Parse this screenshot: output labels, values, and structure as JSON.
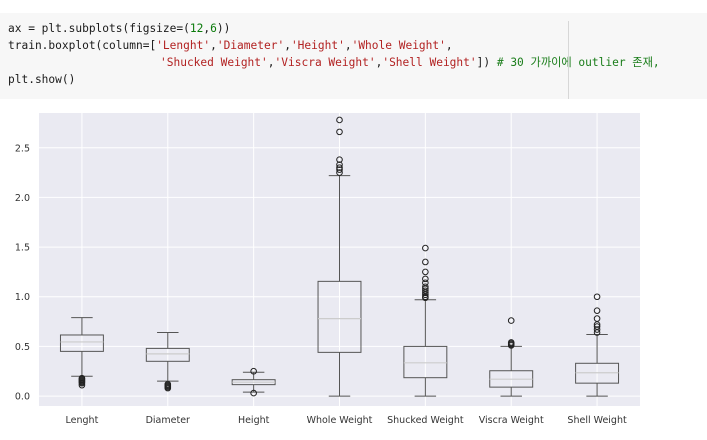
{
  "code": {
    "line1": {
      "p1": "ax = plt.subplots(figsize=(",
      "n1": "12",
      "p2": ",",
      "n2": "6",
      "p3": "))"
    },
    "line2": {
      "p1": "train.boxplot(column=[",
      "s1": "'Lenght'",
      "c1": ",",
      "s2": "'Diameter'",
      "c2": ",",
      "s3": "'Height'",
      "c3": ",",
      "s4": "'Whole Weight'",
      "c4": ","
    },
    "line3": {
      "s5": "'Shucked Weight'",
      "c5": ",",
      "s6": "'Viscra Weight'",
      "c6": ",",
      "s7": "'Shell Weight'",
      "p2": "]) ",
      "comment": "# 30 가까이에 outlier 존재,"
    },
    "line4": "plt.show()"
  },
  "chart_data": {
    "type": "boxplot",
    "title": "",
    "xlabel": "",
    "ylabel": "",
    "ylim": [
      -0.1,
      2.85
    ],
    "yticks": [
      0.0,
      0.5,
      1.0,
      1.5,
      2.0,
      2.5
    ],
    "ytick_labels": [
      "0.0",
      "0.5",
      "1.0",
      "1.5",
      "2.0",
      "2.5"
    ],
    "grid": true,
    "colors": {
      "background": "#eaeaf2",
      "grid": "#ffffff",
      "box": "#555555",
      "median": "#cccccc"
    },
    "categories": [
      "Lenght",
      "Diameter",
      "Height",
      "Whole Weight",
      "Shucked Weight",
      "Viscra Weight",
      "Shell Weight"
    ],
    "boxes": [
      {
        "name": "Lenght",
        "whislo": 0.2,
        "q1": 0.45,
        "med": 0.545,
        "q3": 0.615,
        "whishi": 0.79,
        "fliers": [
          0.11,
          0.13,
          0.14,
          0.15,
          0.16,
          0.17,
          0.18
        ]
      },
      {
        "name": "Diameter",
        "whislo": 0.15,
        "q1": 0.35,
        "med": 0.425,
        "q3": 0.48,
        "whishi": 0.64,
        "fliers": [
          0.08,
          0.09,
          0.1,
          0.11,
          0.12
        ]
      },
      {
        "name": "Height",
        "whislo": 0.04,
        "q1": 0.115,
        "med": 0.14,
        "q3": 0.165,
        "whishi": 0.24,
        "fliers": [
          0.03,
          0.25
        ]
      },
      {
        "name": "Whole Weight",
        "whislo": 0.0,
        "q1": 0.44,
        "med": 0.78,
        "q3": 1.155,
        "whishi": 2.22,
        "fliers": [
          2.25,
          2.28,
          2.3,
          2.33,
          2.38,
          2.66,
          2.78
        ]
      },
      {
        "name": "Shucked Weight",
        "whislo": 0.0,
        "q1": 0.185,
        "med": 0.335,
        "q3": 0.5,
        "whishi": 0.97,
        "fliers": [
          0.99,
          1.0,
          1.02,
          1.04,
          1.06,
          1.08,
          1.1,
          1.14,
          1.18,
          1.25,
          1.35,
          1.49
        ]
      },
      {
        "name": "Viscra Weight",
        "whislo": 0.0,
        "q1": 0.09,
        "med": 0.17,
        "q3": 0.255,
        "whishi": 0.5,
        "fliers": [
          0.51,
          0.52,
          0.53,
          0.54,
          0.76
        ]
      },
      {
        "name": "Shell Weight",
        "whislo": 0.0,
        "q1": 0.13,
        "med": 0.235,
        "q3": 0.33,
        "whishi": 0.62,
        "fliers": [
          0.64,
          0.67,
          0.7,
          0.72,
          0.78,
          0.86,
          1.0
        ]
      }
    ]
  }
}
